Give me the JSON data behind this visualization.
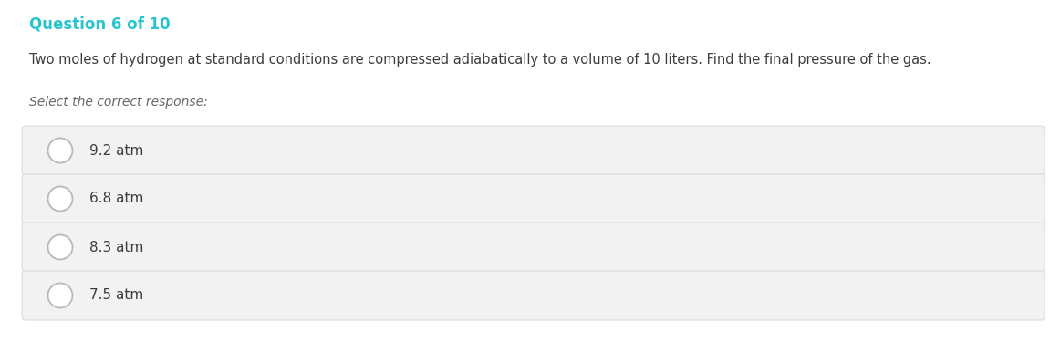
{
  "question_label": "Question 6 of 10",
  "question_label_color": "#29c4d0",
  "question_text": "Two moles of hydrogen at standard conditions are compressed adiabatically to a volume of 10 liters. Find the final pressure of the gas.",
  "question_text_color": "#3d3d3d",
  "select_text": "Select the correct response:",
  "select_text_color": "#666666",
  "options": [
    "9.2 atm",
    "6.8 atm",
    "8.3 atm",
    "7.5 atm"
  ],
  "option_text_color": "#3d3d3d",
  "option_bg_color": "#f2f2f2",
  "option_border_color": "#d8d8d8",
  "circle_edge_color": "#b8b8b8",
  "circle_face_color": "#ffffff",
  "background_color": "#ffffff",
  "fig_width": 11.51,
  "fig_height": 3.75
}
